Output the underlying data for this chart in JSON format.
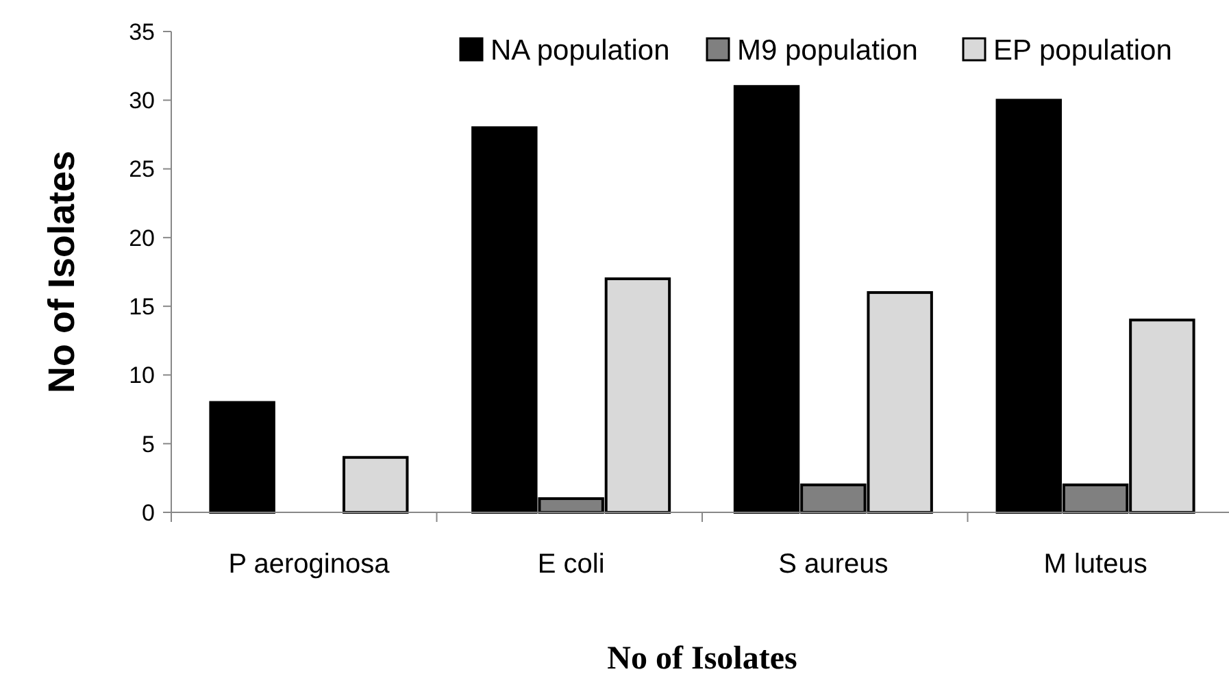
{
  "chart_data": {
    "type": "bar",
    "xlabel": "No of Isolates",
    "ylabel": "No of Isolates",
    "categories": [
      "P aeroginosa",
      "E coli",
      "S aureus",
      "M luteus"
    ],
    "series": [
      {
        "name": "NA population",
        "color": "#000000",
        "values": [
          8,
          28,
          31,
          30
        ]
      },
      {
        "name": "M9 population",
        "color": "#808080",
        "values": [
          0,
          1,
          2,
          2
        ]
      },
      {
        "name": "EP population",
        "color": "#d9d9d9",
        "values": [
          4,
          17,
          16,
          14
        ]
      }
    ],
    "ylim": [
      0,
      35
    ],
    "yticks": [
      0,
      5,
      10,
      15,
      20,
      25,
      30,
      35
    ],
    "grid": false,
    "legend": "top right"
  }
}
